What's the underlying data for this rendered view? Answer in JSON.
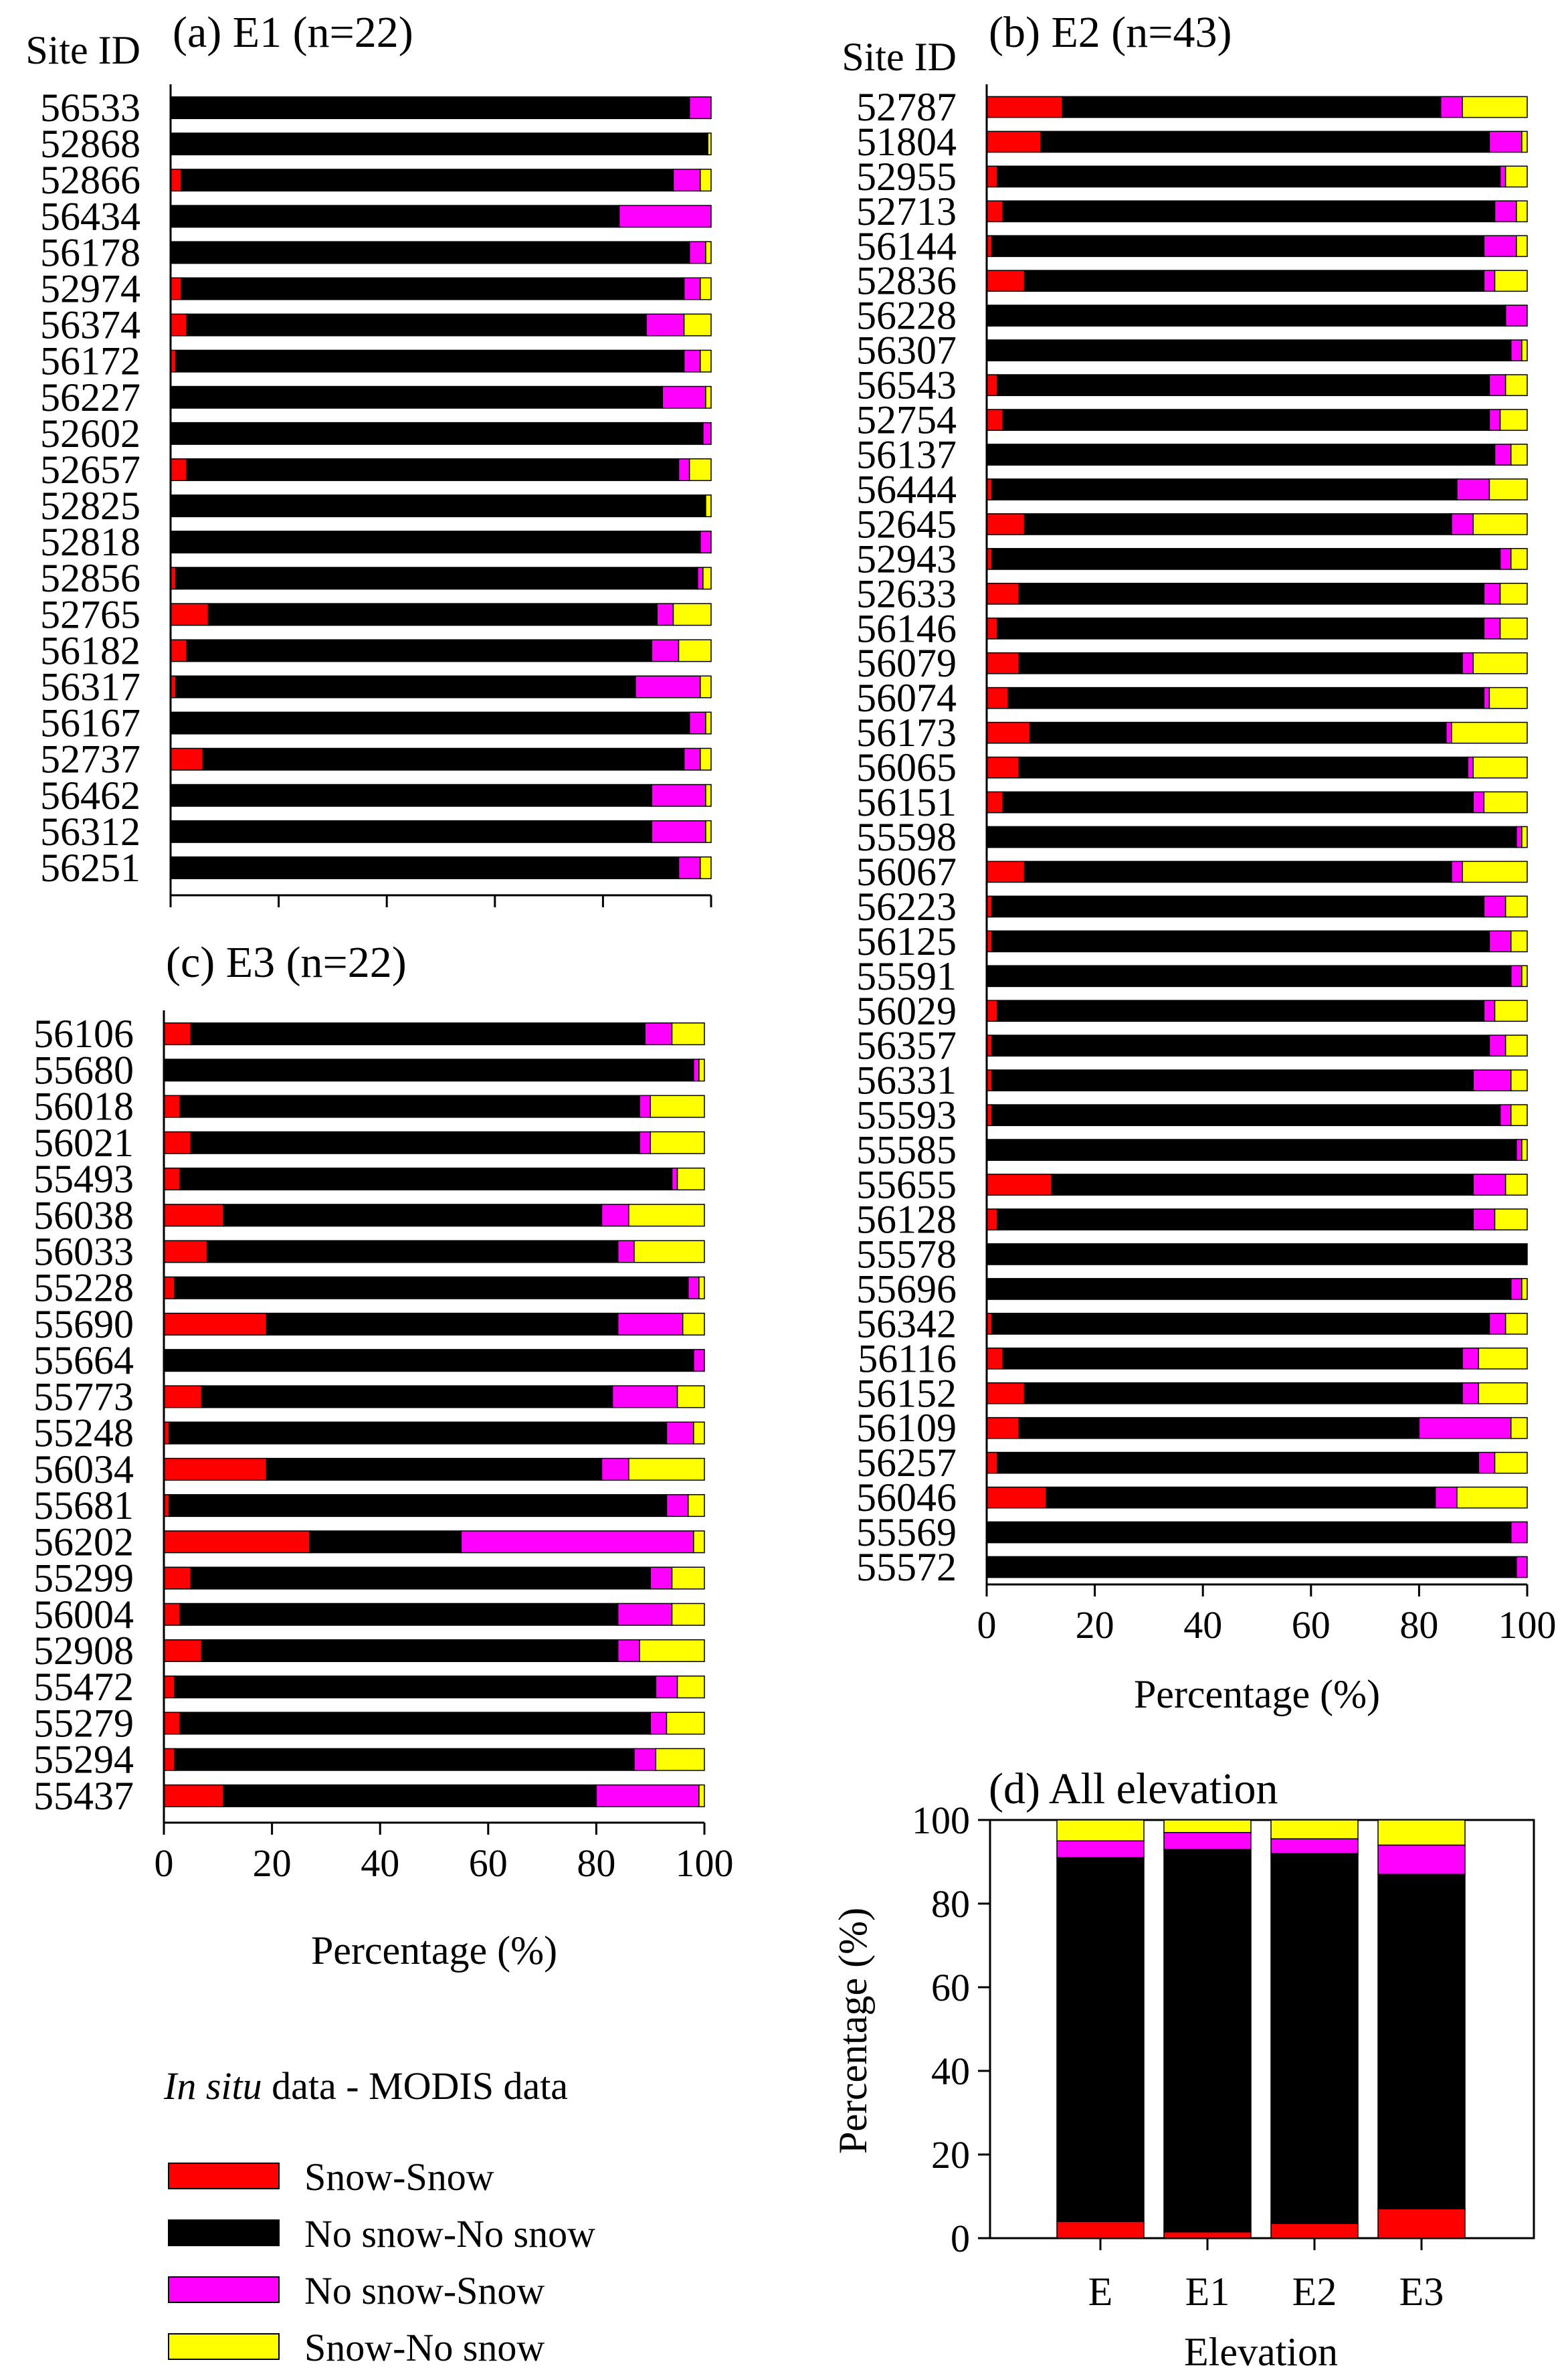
{
  "legend": {
    "title_italic": "In situ",
    "title_rest": " data - MODIS data",
    "items": [
      {
        "label": "Snow-Snow",
        "color": "#ff0000"
      },
      {
        "label": "No snow-No snow",
        "color": "#000000"
      },
      {
        "label": "No snow-Snow",
        "color": "#ff00ff"
      },
      {
        "label": "Snow-No snow",
        "color": "#ffff00"
      }
    ]
  },
  "chart_data": [
    {
      "id": "a",
      "type": "bar",
      "orientation": "horizontal",
      "stacked": true,
      "title": "(a) E1 (n=22)",
      "ylabel": "Site ID",
      "xlabel": "",
      "xlim": [
        0,
        100
      ],
      "xticks": [],
      "series_names": [
        "Snow-Snow",
        "No snow-No snow",
        "No snow-Snow",
        "Snow-No snow"
      ],
      "categories": [
        "56533",
        "52868",
        "52866",
        "56434",
        "56178",
        "52974",
        "56374",
        "56172",
        "56227",
        "52602",
        "52657",
        "52825",
        "52818",
        "52856",
        "52765",
        "56182",
        "56317",
        "56167",
        "52737",
        "56462",
        "56312",
        "56251"
      ],
      "values": [
        [
          0,
          96,
          4,
          0
        ],
        [
          0,
          99.4,
          0,
          0.6
        ],
        [
          2,
          91,
          5,
          2
        ],
        [
          0,
          83,
          17,
          0
        ],
        [
          0,
          96,
          3,
          1
        ],
        [
          2,
          93,
          3,
          2
        ],
        [
          3,
          85,
          7,
          5
        ],
        [
          1,
          94,
          3,
          2
        ],
        [
          0,
          91,
          8,
          1
        ],
        [
          0,
          98.5,
          1.5,
          0
        ],
        [
          3,
          91,
          2,
          4
        ],
        [
          0,
          99,
          0,
          1
        ],
        [
          0,
          98,
          2,
          0
        ],
        [
          1,
          96.5,
          1,
          1.5
        ],
        [
          7,
          83,
          3,
          7
        ],
        [
          3,
          86,
          5,
          6
        ],
        [
          1,
          85,
          12,
          2
        ],
        [
          0,
          96,
          3,
          1
        ],
        [
          6,
          89,
          3,
          2
        ],
        [
          0,
          89,
          10,
          1
        ],
        [
          0,
          89,
          10,
          1
        ],
        [
          0,
          94,
          4,
          2
        ]
      ]
    },
    {
      "id": "b",
      "type": "bar",
      "orientation": "horizontal",
      "stacked": true,
      "title": "(b) E2 (n=43)",
      "ylabel": "Site ID",
      "xlabel": "Percentage (%)",
      "xlim": [
        0,
        100
      ],
      "xticks": [
        0,
        20,
        40,
        60,
        80,
        100
      ],
      "series_names": [
        "Snow-Snow",
        "No snow-No snow",
        "No snow-Snow",
        "Snow-No snow"
      ],
      "categories": [
        "52787",
        "51804",
        "52955",
        "52713",
        "56144",
        "52836",
        "56228",
        "56307",
        "56543",
        "52754",
        "56137",
        "56444",
        "52645",
        "52943",
        "52633",
        "56146",
        "56079",
        "56074",
        "56173",
        "56065",
        "56151",
        "55598",
        "56067",
        "56223",
        "56125",
        "55591",
        "56029",
        "56357",
        "56331",
        "55593",
        "55585",
        "55655",
        "56128",
        "55578",
        "55696",
        "56342",
        "56116",
        "56152",
        "56109",
        "56257",
        "56046",
        "55569",
        "55572"
      ],
      "values": [
        [
          14,
          70,
          4,
          12
        ],
        [
          10,
          83,
          6,
          1
        ],
        [
          2,
          93,
          1,
          4
        ],
        [
          3,
          91,
          4,
          2
        ],
        [
          1,
          91,
          6,
          2
        ],
        [
          7,
          85,
          2,
          6
        ],
        [
          0,
          96,
          4,
          0
        ],
        [
          0,
          97,
          2,
          1
        ],
        [
          2,
          91,
          3,
          4
        ],
        [
          3,
          90,
          2,
          5
        ],
        [
          0,
          94,
          3,
          3
        ],
        [
          1,
          86,
          6,
          7
        ],
        [
          7,
          79,
          4,
          10
        ],
        [
          1,
          94,
          2,
          3
        ],
        [
          6,
          86,
          3,
          5
        ],
        [
          2,
          90,
          3,
          5
        ],
        [
          6,
          82,
          2,
          10
        ],
        [
          4,
          88,
          1,
          7
        ],
        [
          8,
          77,
          1,
          14
        ],
        [
          6,
          83,
          1,
          10
        ],
        [
          3,
          87,
          2,
          8
        ],
        [
          0,
          98,
          1,
          1
        ],
        [
          7,
          79,
          2,
          12
        ],
        [
          1,
          91,
          4,
          4
        ],
        [
          1,
          92,
          4,
          3
        ],
        [
          0,
          97,
          2,
          1
        ],
        [
          2,
          90,
          2,
          6
        ],
        [
          1,
          92,
          3,
          4
        ],
        [
          1,
          89,
          7,
          3
        ],
        [
          1,
          94,
          2,
          3
        ],
        [
          0,
          98,
          1,
          1
        ],
        [
          12,
          78,
          6,
          4
        ],
        [
          2,
          88,
          4,
          6
        ],
        [
          0,
          100,
          0,
          0
        ],
        [
          0,
          97,
          2,
          1
        ],
        [
          1,
          92,
          3,
          4
        ],
        [
          3,
          85,
          3,
          9
        ],
        [
          7,
          81,
          3,
          9
        ],
        [
          6,
          74,
          17,
          3
        ],
        [
          2,
          89,
          3,
          6
        ],
        [
          11,
          72,
          4,
          13
        ],
        [
          0,
          97,
          3,
          0
        ],
        [
          0,
          98,
          2,
          0
        ]
      ]
    },
    {
      "id": "c",
      "type": "bar",
      "orientation": "horizontal",
      "stacked": true,
      "title": "(c) E3 (n=22)",
      "ylabel": "",
      "xlabel": "Percentage (%)",
      "xlim": [
        0,
        100
      ],
      "xticks": [
        0,
        20,
        40,
        60,
        80,
        100
      ],
      "series_names": [
        "Snow-Snow",
        "No snow-No snow",
        "No snow-Snow",
        "Snow-No snow"
      ],
      "categories": [
        "56106",
        "55680",
        "56018",
        "56021",
        "55493",
        "56038",
        "56033",
        "55228",
        "55690",
        "55664",
        "55773",
        "55248",
        "56034",
        "55681",
        "56202",
        "55299",
        "56004",
        "52908",
        "55472",
        "55279",
        "55294",
        "55437"
      ],
      "values": [
        [
          5,
          84,
          5,
          6
        ],
        [
          0,
          98,
          1,
          1
        ],
        [
          3,
          85,
          2,
          10
        ],
        [
          5,
          83,
          2,
          10
        ],
        [
          3,
          91,
          1,
          5
        ],
        [
          11,
          70,
          5,
          14
        ],
        [
          8,
          76,
          3,
          13
        ],
        [
          2,
          95,
          2,
          1
        ],
        [
          19,
          65,
          12,
          4
        ],
        [
          0,
          98,
          2,
          0
        ],
        [
          7,
          76,
          12,
          5
        ],
        [
          1,
          92,
          5,
          2
        ],
        [
          19,
          62,
          5,
          14
        ],
        [
          1,
          92,
          4,
          3
        ],
        [
          27,
          28,
          43,
          2
        ],
        [
          5,
          85,
          4,
          6
        ],
        [
          3,
          81,
          10,
          6
        ],
        [
          7,
          77,
          4,
          12
        ],
        [
          2,
          89,
          4,
          5
        ],
        [
          3,
          87,
          3,
          7
        ],
        [
          2,
          85,
          4,
          9
        ],
        [
          11,
          69,
          19,
          1
        ]
      ]
    },
    {
      "id": "d",
      "type": "bar",
      "orientation": "vertical",
      "stacked": true,
      "title": "(d) All elevation",
      "xlabel": "Elevation",
      "ylabel": "Percentage (%)",
      "ylim": [
        0,
        100
      ],
      "yticks": [
        0,
        20,
        40,
        60,
        80,
        100
      ],
      "series_names": [
        "Snow-Snow",
        "No snow-No snow",
        "No snow-Snow",
        "Snow-No snow"
      ],
      "categories": [
        "E",
        "E1",
        "E2",
        "E3"
      ],
      "values": [
        [
          4,
          87,
          4,
          5
        ],
        [
          1.5,
          91.5,
          4,
          3
        ],
        [
          3.5,
          88.5,
          3.5,
          4.5
        ],
        [
          7,
          80,
          7,
          6
        ]
      ]
    }
  ]
}
